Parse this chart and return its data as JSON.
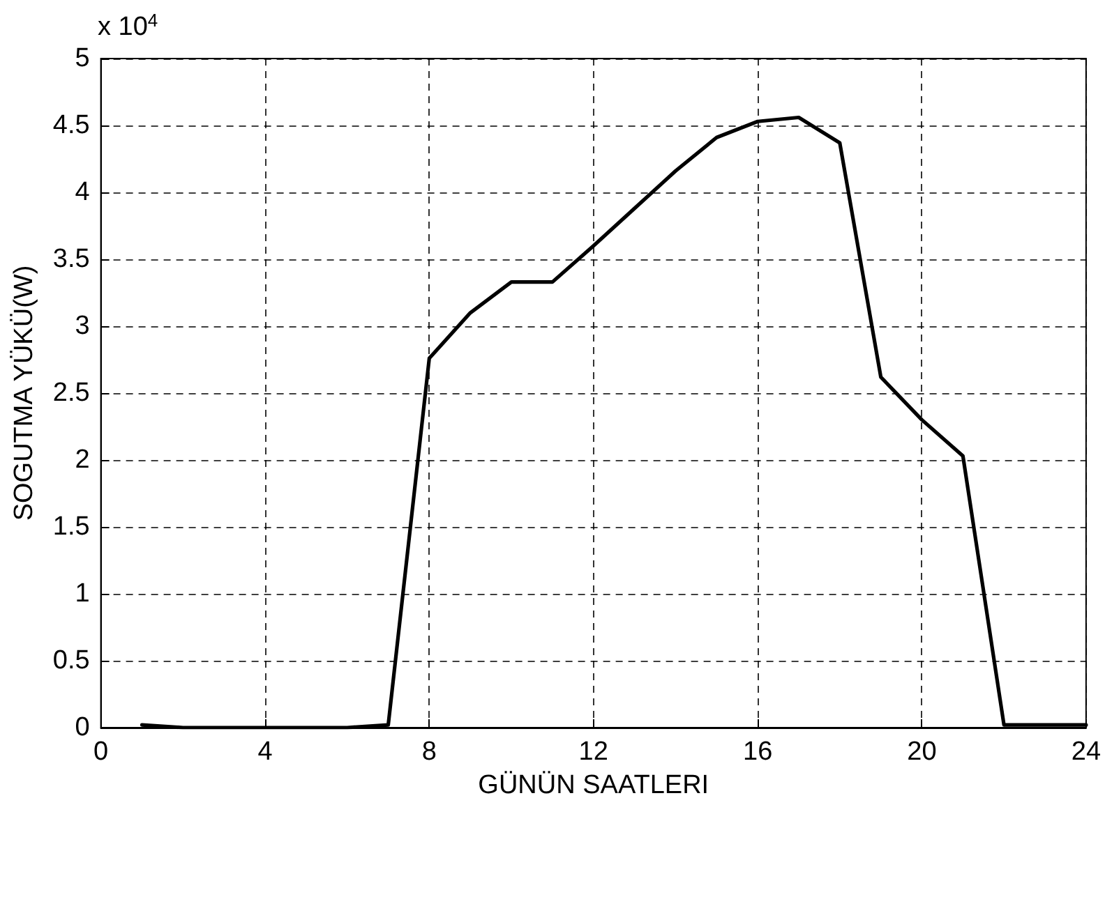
{
  "chart_data": {
    "type": "line",
    "xlabel": "GÜNÜN SAATLERI",
    "ylabel": "SOGUTMA YÜKÜ(W)",
    "annotations": [
      "x 10$^{4}$"
    ],
    "x": [
      1,
      2,
      3,
      4,
      5,
      6,
      7,
      8,
      9,
      10,
      11,
      12,
      13,
      14,
      15,
      16,
      17,
      18,
      19,
      20,
      21,
      22,
      23,
      24
    ],
    "series": [
      {
        "color": "#000000",
        "values": [
          0.02,
          0,
          0,
          0,
          0,
          0,
          0.02,
          2.76,
          3.1,
          3.33,
          3.33,
          3.6,
          3.88,
          4.16,
          4.41,
          4.53,
          4.56,
          4.37,
          2.62,
          2.3,
          2.03,
          0.02,
          0.02,
          0.02
        ]
      }
    ],
    "xlim": [
      0,
      24
    ],
    "xticks": [
      0,
      4,
      8,
      12,
      16,
      20,
      24
    ],
    "ylim": [
      0,
      5
    ],
    "yticks": [
      0,
      0.5,
      1,
      1.5,
      2,
      2.5,
      3,
      3.5,
      4,
      4.5,
      5
    ],
    "grid": true,
    "marker": "none",
    "line_style": "solid"
  }
}
